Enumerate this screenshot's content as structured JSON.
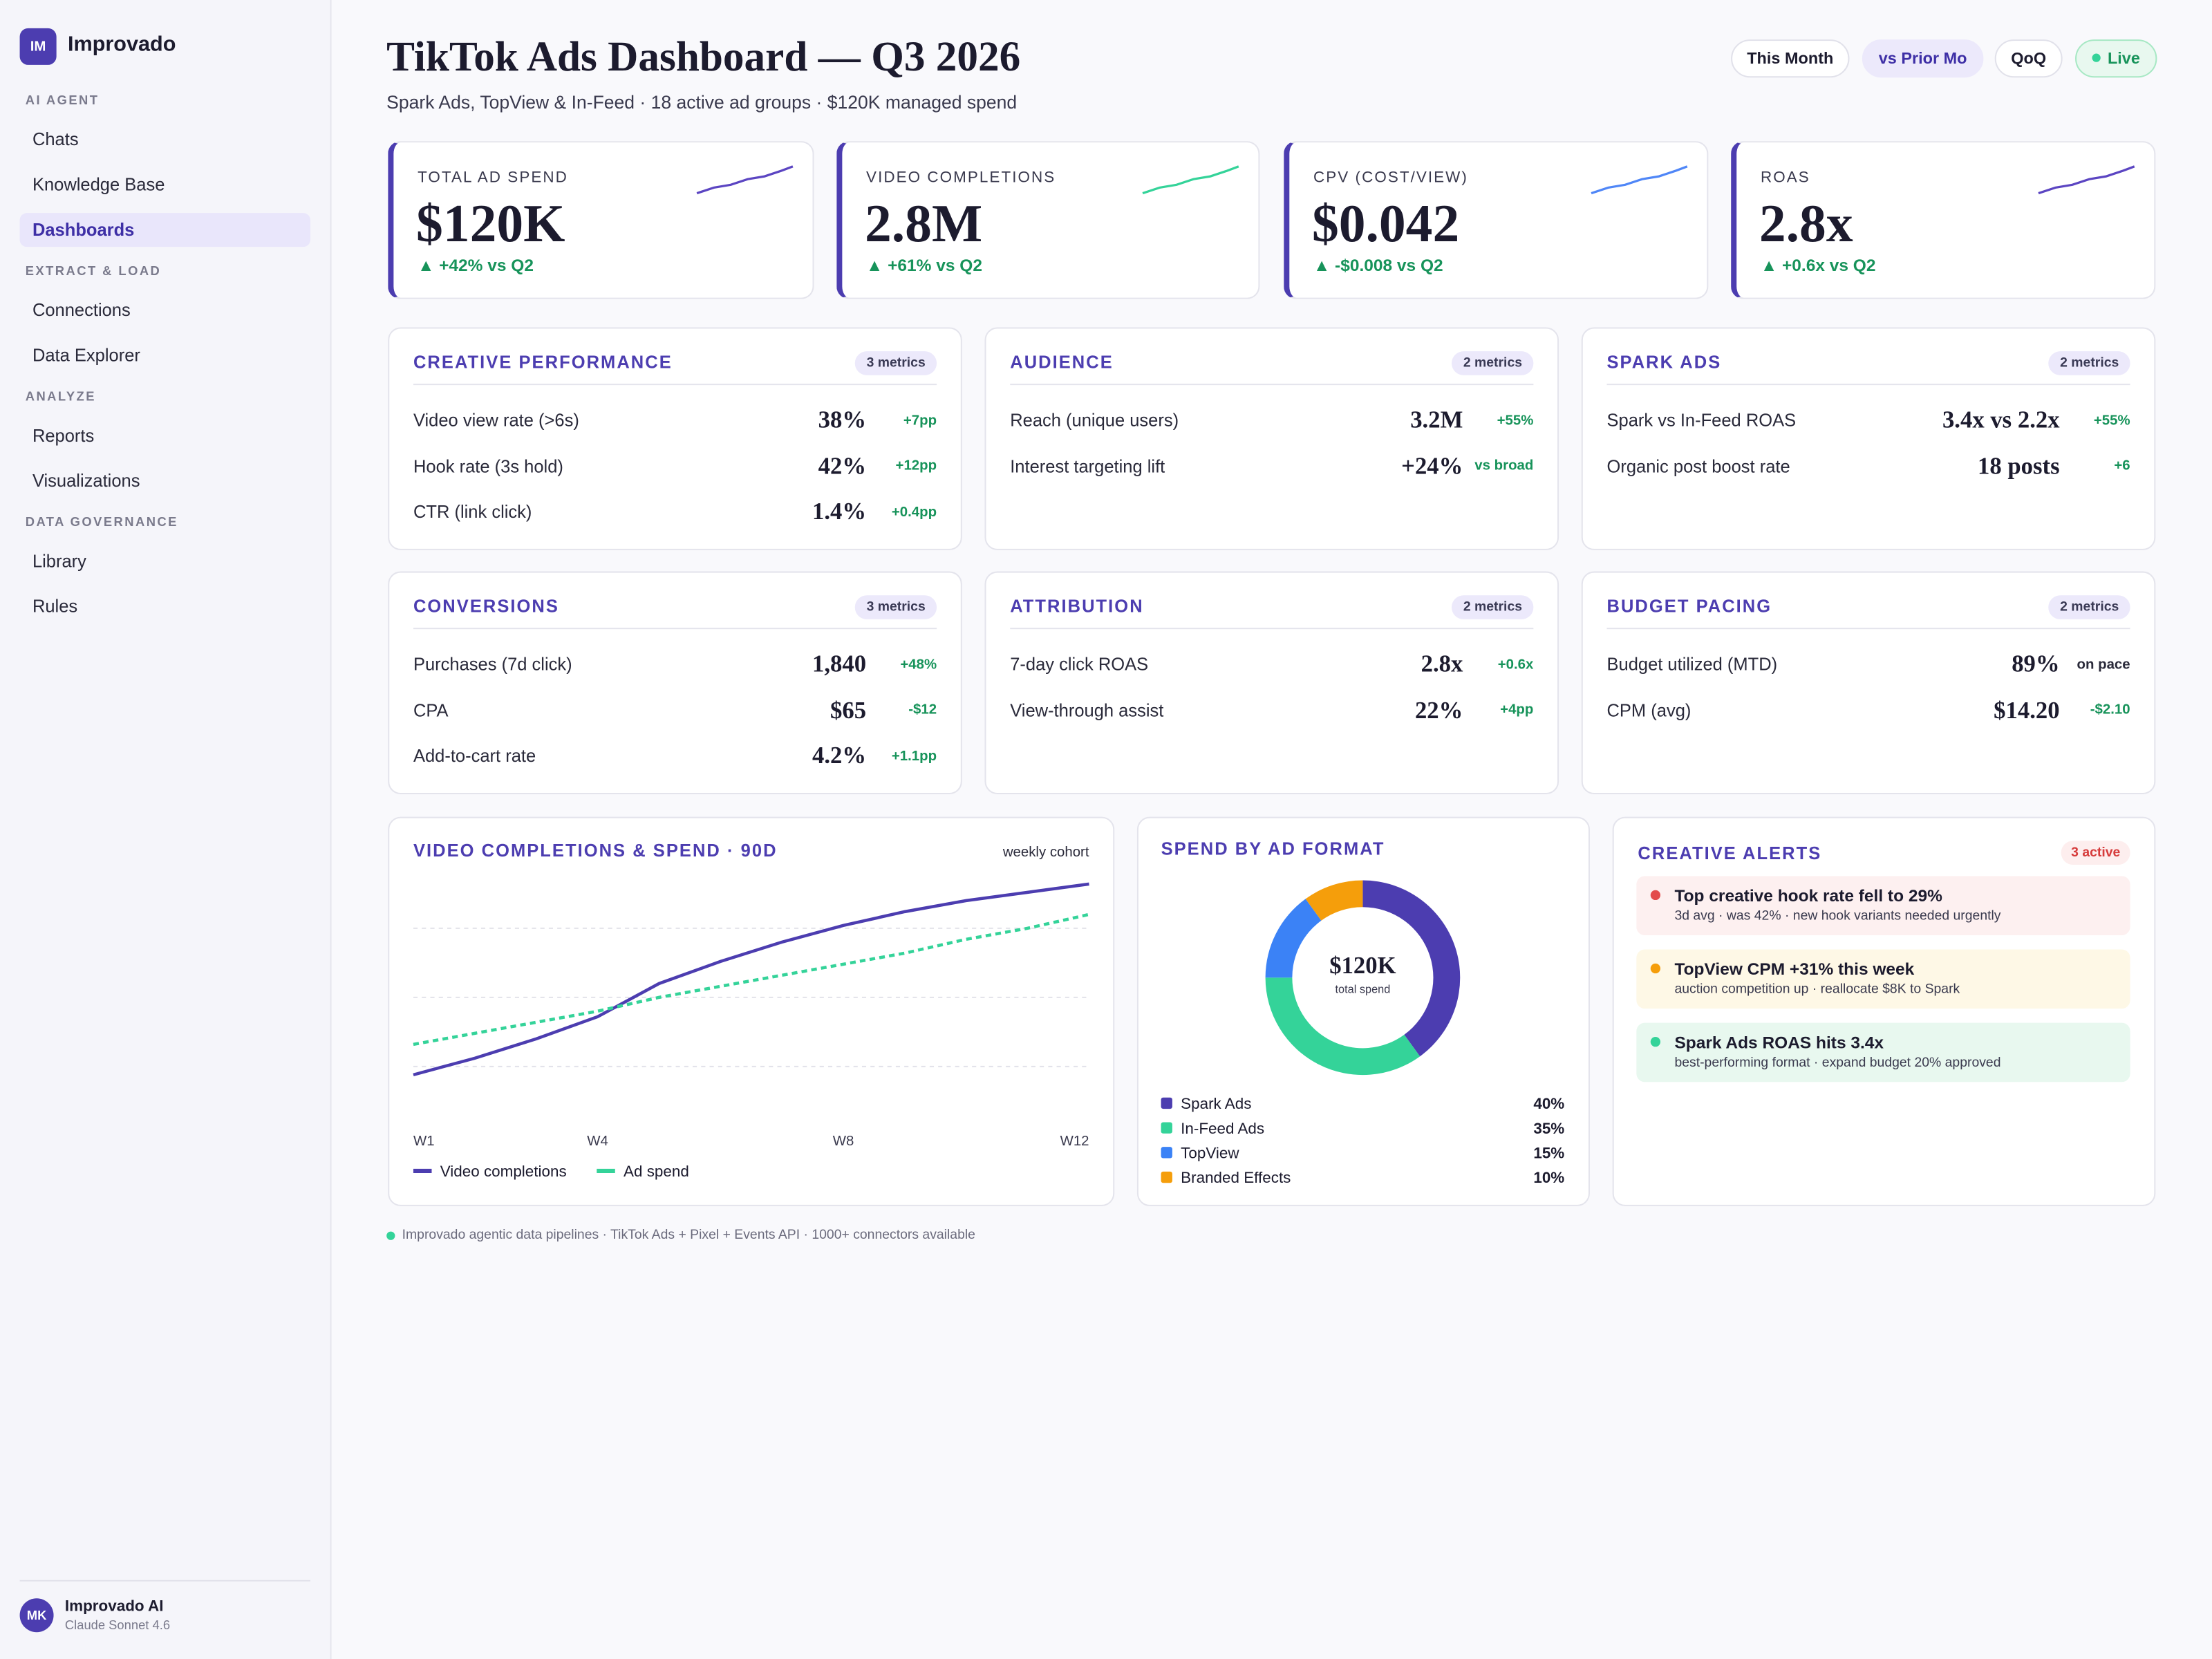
{
  "sidebar": {
    "logo": "IM",
    "brand": "Improvado",
    "sections": [
      {
        "title": "AI AGENT",
        "items": [
          {
            "label": "Chats"
          },
          {
            "label": "Knowledge Base"
          },
          {
            "label": "Dashboards",
            "active": true
          }
        ]
      },
      {
        "title": "EXTRACT & LOAD",
        "items": [
          {
            "label": "Connections"
          },
          {
            "label": "Data Explorer"
          }
        ]
      },
      {
        "title": "ANALYZE",
        "items": [
          {
            "label": "Reports"
          },
          {
            "label": "Visualizations"
          }
        ]
      },
      {
        "title": "DATA GOVERNANCE",
        "items": [
          {
            "label": "Library"
          },
          {
            "label": "Rules"
          }
        ]
      }
    ],
    "user": {
      "avatar": "MK",
      "name": "Improvado AI",
      "model": "Claude Sonnet 4.6"
    }
  },
  "header": {
    "title": "TikTok Ads Dashboard — Q3 2026",
    "subtitle": "Spark Ads, TopView & In-Feed · 18 active ad groups · $120K managed spend",
    "buttons": [
      {
        "label": "This Month"
      },
      {
        "label": "vs Prior Mo",
        "active": true
      },
      {
        "label": "QoQ"
      },
      {
        "label": "Live",
        "live": true
      }
    ]
  },
  "kpis": [
    {
      "label": "TOTAL AD SPEND",
      "value": "$120K",
      "delta": "▲ +42% vs Q2",
      "spark_color": "#5b45c2"
    },
    {
      "label": "VIDEO COMPLETIONS",
      "value": "2.8M",
      "delta": "▲ +61% vs Q2",
      "spark_color": "#34d399"
    },
    {
      "label": "CPV (COST/VIEW)",
      "value": "$0.042",
      "delta": "▲ -$0.008 vs Q2",
      "spark_color": "#4f86f7"
    },
    {
      "label": "ROAS",
      "value": "2.8x",
      "delta": "▲ +0.6x vs Q2",
      "spark_color": "#5b45c2"
    }
  ],
  "panels": [
    {
      "title": "CREATIVE PERFORMANCE",
      "badge": "3 metrics",
      "rows": [
        {
          "label": "Video view rate (>6s)",
          "value": "38%",
          "delta": "+7pp"
        },
        {
          "label": "Hook rate (3s hold)",
          "value": "42%",
          "delta": "+12pp"
        },
        {
          "label": "CTR (link click)",
          "value": "1.4%",
          "delta": "+0.4pp"
        }
      ]
    },
    {
      "title": "AUDIENCE",
      "badge": "2 metrics",
      "rows": [
        {
          "label": "Reach (unique users)",
          "value": "3.2M",
          "delta": "+55%"
        },
        {
          "label": "Interest targeting lift",
          "value": "+24%",
          "delta": "vs broad"
        }
      ]
    },
    {
      "title": "SPARK ADS",
      "badge": "2 metrics",
      "rows": [
        {
          "label": "Spark vs In-Feed ROAS",
          "value": "3.4x vs 2.2x",
          "delta": "+55%"
        },
        {
          "label": "Organic post boost rate",
          "value": "18 posts",
          "delta": "+6"
        }
      ]
    },
    {
      "title": "CONVERSIONS",
      "badge": "3 metrics",
      "rows": [
        {
          "label": "Purchases (7d click)",
          "value": "1,840",
          "delta": "+48%"
        },
        {
          "label": "CPA",
          "value": "$65",
          "delta": "-$12"
        },
        {
          "label": "Add-to-cart rate",
          "value": "4.2%",
          "delta": "+1.1pp"
        }
      ]
    },
    {
      "title": "ATTRIBUTION",
      "badge": "2 metrics",
      "rows": [
        {
          "label": "7-day click ROAS",
          "value": "2.8x",
          "delta": "+0.6x"
        },
        {
          "label": "View-through assist",
          "value": "22%",
          "delta": "+4pp"
        }
      ]
    },
    {
      "title": "BUDGET PACING",
      "badge": "2 metrics",
      "rows": [
        {
          "label": "Budget utilized (MTD)",
          "value": "89%",
          "delta": "on pace",
          "neutral": true
        },
        {
          "label": "CPM (avg)",
          "value": "$14.20",
          "delta": "-$2.10"
        }
      ]
    }
  ],
  "line_chart": {
    "type": "line",
    "title": "VIDEO COMPLETIONS & SPEND · 90D",
    "note": "weekly cohort",
    "categories": [
      "W1",
      null,
      null,
      "W4",
      null,
      null,
      null,
      "W8",
      null,
      null,
      null,
      "W12"
    ],
    "series": [
      {
        "name": "Video completions",
        "color": "#4c3db0",
        "dashed": false,
        "values": [
          22,
          28,
          35,
          43,
          55,
          63,
          70,
          76,
          81,
          85,
          88,
          91
        ]
      },
      {
        "name": "Ad spend",
        "color": "#34d399",
        "dashed": true,
        "values": [
          33,
          37,
          41,
          45,
          50,
          54,
          58,
          62,
          66,
          71,
          75,
          80
        ]
      }
    ],
    "ylim": [
      0,
      100
    ],
    "yticks": [
      25,
      50,
      75
    ],
    "grid": true
  },
  "donut_chart": {
    "type": "pie",
    "title": "SPEND BY AD FORMAT",
    "center_value": "$120K",
    "center_label": "total spend",
    "categories": [
      "Spark Ads",
      "In-Feed Ads",
      "TopView",
      "Branded Effects"
    ],
    "values": [
      40,
      35,
      15,
      10
    ],
    "value_labels": [
      "40%",
      "35%",
      "15%",
      "10%"
    ],
    "colors": [
      "#4c3db0",
      "#34d399",
      "#3b82f6",
      "#f59e0b"
    ]
  },
  "alerts": {
    "title": "CREATIVE ALERTS",
    "badge": "3 active",
    "items": [
      {
        "title": "Top creative hook rate fell to 29%",
        "detail": "3d avg · was 42% · new hook variants needed urgently",
        "tone": "red"
      },
      {
        "title": "TopView CPM +31% this week",
        "detail": "auction competition up · reallocate $8K to Spark",
        "tone": "amber"
      },
      {
        "title": "Spark Ads ROAS hits 3.4x",
        "detail": "best-performing format · expand budget 20% approved",
        "tone": "green"
      }
    ]
  },
  "footer": "Improvado agentic data pipelines · TikTok Ads + Pixel + Events API · 1000+ connectors available"
}
